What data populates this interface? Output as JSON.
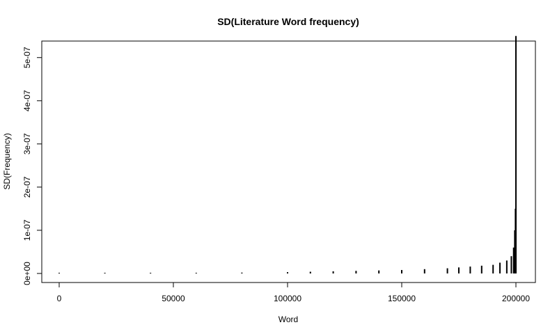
{
  "chart_data": {
    "type": "scatter",
    "title": "SD(Literature Word frequency)",
    "xlabel": "Word",
    "ylabel": "SD(Frequency)",
    "xlim": [
      0,
      200000
    ],
    "ylim": [
      0,
      5.6e-07
    ],
    "x_ticks": [
      {
        "value": 0,
        "label": "0"
      },
      {
        "value": 50000,
        "label": "50000"
      },
      {
        "value": 100000,
        "label": "100000"
      },
      {
        "value": 150000,
        "label": "150000"
      },
      {
        "value": 200000,
        "label": "200000"
      }
    ],
    "y_ticks": [
      {
        "value": 0,
        "label": "0e+00"
      },
      {
        "value": 1e-07,
        "label": "1e-07"
      },
      {
        "value": 2e-07,
        "label": "2e-07"
      },
      {
        "value": 3e-07,
        "label": "3e-07"
      },
      {
        "value": 4e-07,
        "label": "4e-07"
      },
      {
        "value": 5e-07,
        "label": "5e-07"
      }
    ],
    "grid": false,
    "legend": "none",
    "point_color": "#000000",
    "series": [
      {
        "x": [
          0,
          20000,
          40000,
          60000,
          80000,
          100000,
          110000,
          120000,
          130000,
          140000,
          150000,
          160000,
          170000,
          175000,
          180000,
          185000,
          190000,
          193000,
          196000,
          198000,
          199000,
          199500,
          199800,
          200000,
          200000,
          200000,
          200000
        ],
        "y": [
          2e-10,
          5e-10,
          1e-09,
          1.5e-09,
          2e-09,
          3e-09,
          4e-09,
          5e-09,
          6e-09,
          7e-09,
          8e-09,
          1e-08,
          1.2e-08,
          1.4e-08,
          1.6e-08,
          1.8e-08,
          2e-08,
          2.5e-08,
          3e-08,
          4e-08,
          6e-08,
          1e-07,
          1.5e-07,
          2.8e-07,
          3e-07,
          5.2e-07,
          5.5e-07
        ]
      }
    ]
  }
}
